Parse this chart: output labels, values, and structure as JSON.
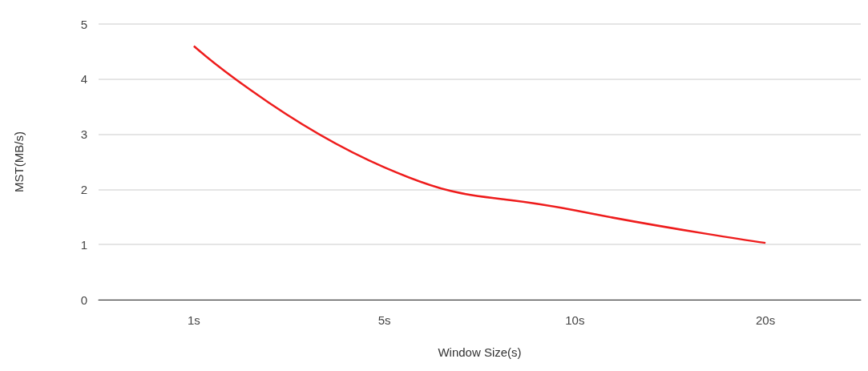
{
  "chart_data": {
    "type": "line",
    "xlabel": "Window Size(s)",
    "ylabel": "MST(MB/s)",
    "categories": [
      "1s",
      "5s",
      "10s",
      "20s"
    ],
    "series": [
      {
        "color": "#ee1c1c",
        "values": [
          4.6,
          2.4,
          1.62,
          1.03
        ]
      }
    ],
    "ylim": [
      0,
      5
    ],
    "yticks": [
      0,
      1,
      2,
      3,
      4,
      5
    ],
    "grid": "y",
    "marker": "none",
    "line_style": "solid"
  }
}
